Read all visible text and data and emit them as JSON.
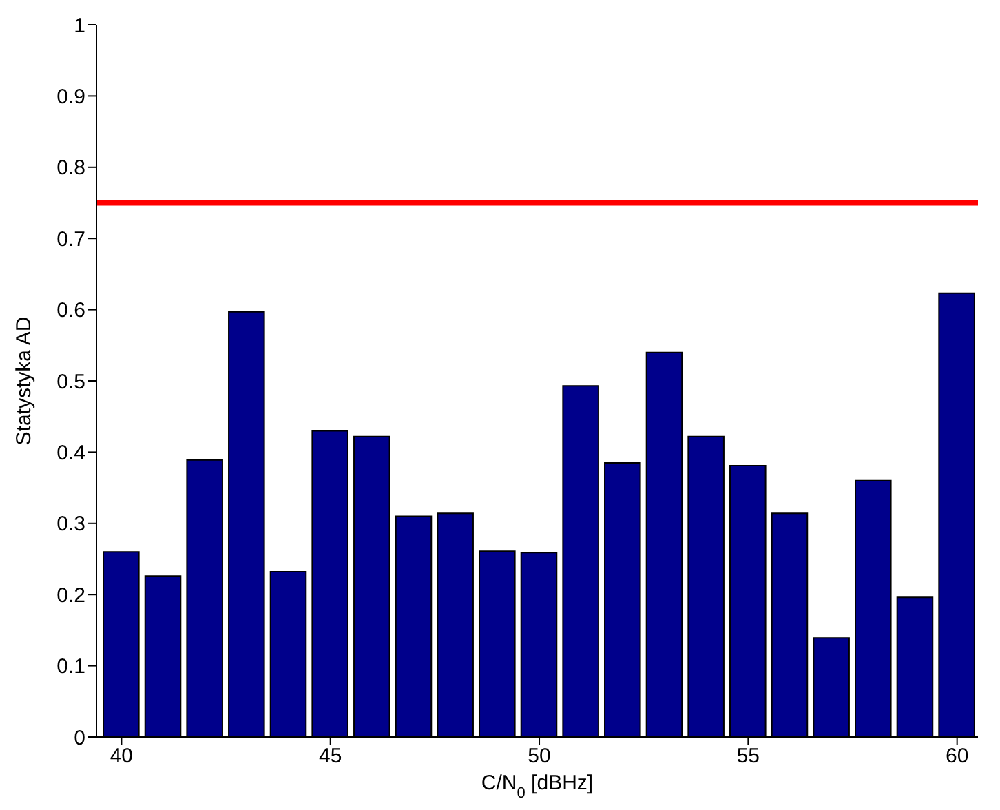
{
  "chart_data": {
    "type": "bar",
    "xlabel": "C/N$_{0}$ [dBHz]",
    "ylabel": "Statystyka AD",
    "x": [
      40,
      41,
      42,
      43,
      44,
      45,
      46,
      47,
      48,
      49,
      50,
      51,
      52,
      53,
      54,
      55,
      56,
      57,
      58,
      59,
      60
    ],
    "values": [
      0.26,
      0.226,
      0.389,
      0.597,
      0.232,
      0.43,
      0.422,
      0.31,
      0.314,
      0.261,
      0.259,
      0.493,
      0.385,
      0.54,
      0.422,
      0.381,
      0.314,
      0.139,
      0.36,
      0.196,
      0.623
    ],
    "color": "#00008b",
    "xlim": [
      39.4,
      60.5
    ],
    "xticks": [
      40,
      45,
      50,
      55,
      60
    ],
    "ylim": [
      0,
      1
    ],
    "yticks": [
      0,
      0.1,
      0.2,
      0.3,
      0.4,
      0.5,
      0.6,
      0.7,
      0.8,
      0.9,
      1
    ],
    "ref_lines": [
      {
        "axis": "y",
        "value": 0.75,
        "color": "#ff0000"
      }
    ],
    "grid": false,
    "legend": false
  }
}
